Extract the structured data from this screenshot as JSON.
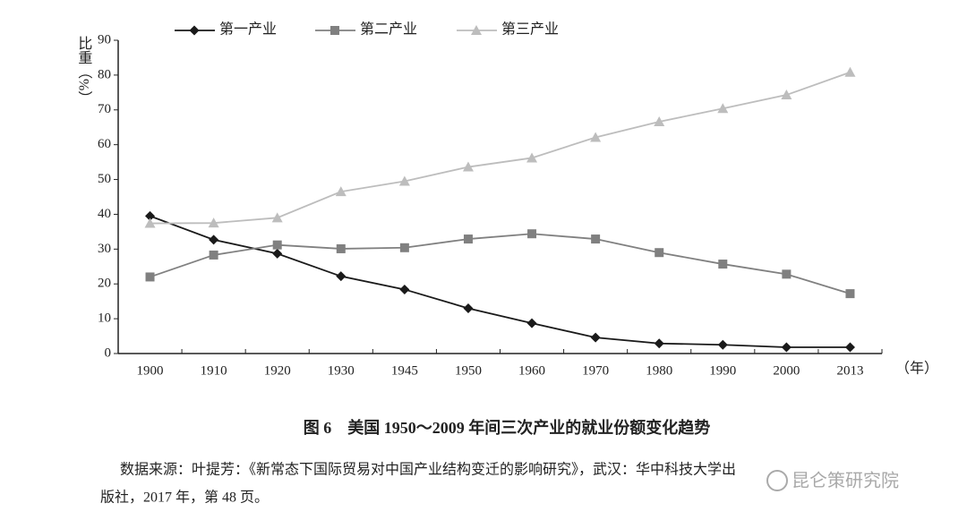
{
  "chart_data": {
    "type": "line",
    "y_label": "比重（%）",
    "x_label": "（年）",
    "categories": [
      "1900",
      "1910",
      "1920",
      "1930",
      "1945",
      "1950",
      "1960",
      "1970",
      "1980",
      "1990",
      "2000",
      "2013"
    ],
    "series": [
      {
        "name": "第一产业",
        "color": "#1a1a1a",
        "marker": "diamond",
        "values": [
          39.5,
          32.7,
          28.7,
          22.2,
          18.4,
          13.0,
          8.7,
          4.6,
          2.9,
          2.5,
          1.8,
          1.8
        ]
      },
      {
        "name": "第二产业",
        "color": "#808080",
        "marker": "square",
        "values": [
          22.0,
          28.3,
          31.2,
          30.1,
          30.4,
          32.9,
          34.4,
          32.9,
          29.0,
          25.7,
          22.8,
          17.2
        ]
      },
      {
        "name": "第三产业",
        "color": "#bdbdbd",
        "marker": "triangle",
        "values": [
          37.4,
          37.5,
          39.0,
          46.5,
          49.5,
          53.6,
          56.2,
          62.1,
          66.6,
          70.4,
          74.3,
          80.8
        ]
      }
    ],
    "ylim": [
      0,
      90
    ],
    "yticks": [
      0,
      10,
      20,
      30,
      40,
      50,
      60,
      70,
      80,
      90
    ],
    "legend": "top",
    "caption": "图 6　美国 1950～2009 年间三次产业的就业份额变化趋势",
    "source": [
      "数据来源：叶提芳：《新常态下国际贸易对中国产业结构变迁的影响研究》，武汉：华中科技大学出",
      "版社，2017 年，第 48 页。"
    ],
    "watermark": "昆仑策研究院"
  }
}
